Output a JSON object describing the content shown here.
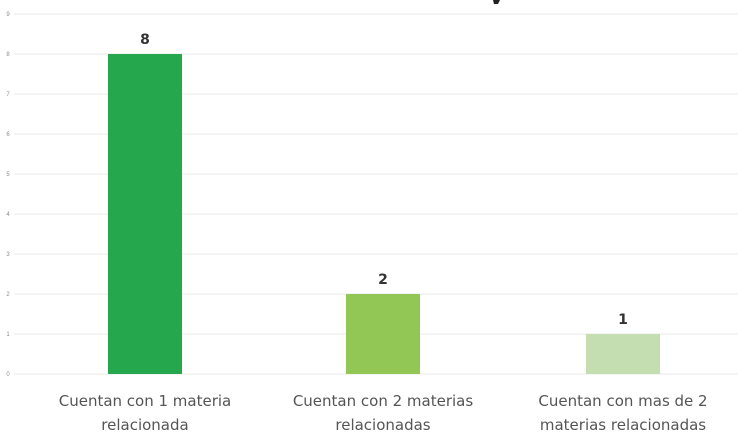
{
  "chart_data": {
    "type": "bar",
    "categories": [
      [
        "Cuentan con 1 materia",
        "relacionada"
      ],
      [
        "Cuentan con 2 materias",
        "relacionadas"
      ],
      [
        "Cuentan con mas de 2",
        "materias relacionadas"
      ]
    ],
    "values": [
      8,
      2,
      1
    ],
    "data_labels": [
      "8",
      "2",
      "1"
    ],
    "ylim": [
      0,
      9
    ],
    "yticks": [
      "0",
      "1",
      "2",
      "3",
      "4",
      "5",
      "6",
      "7",
      "8",
      "9"
    ],
    "grid": true,
    "legend": "none",
    "colors": [
      "#25a84d",
      "#92c655",
      "#c4deb1"
    ]
  }
}
